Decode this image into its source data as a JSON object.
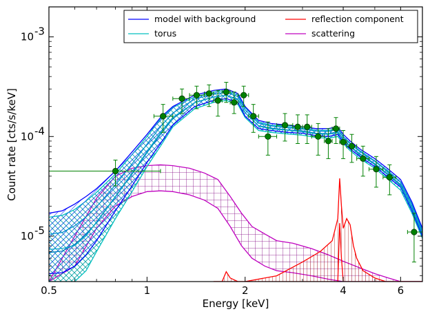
{
  "chart_data": {
    "type": "line",
    "xlabel": "Energy [keV]",
    "ylabel": "Count rate [cts/s/keV]",
    "xscale": "log",
    "yscale": "log",
    "xlim": [
      0.5,
      7.0
    ],
    "ylim": [
      3.5e-06,
      0.002
    ],
    "x_ticks": [
      {
        "value": 0.5,
        "label": "0.5"
      },
      {
        "value": 1,
        "label": "1"
      },
      {
        "value": 2,
        "label": "2"
      },
      {
        "value": 4,
        "label": "4"
      },
      {
        "value": 6,
        "label": "6"
      }
    ],
    "y_ticks": [
      {
        "value": 1e-05,
        "base": "10",
        "exp": "-5"
      },
      {
        "value": 0.0001,
        "base": "10",
        "exp": "-4"
      },
      {
        "value": 0.001,
        "base": "10",
        "exp": "-3"
      }
    ],
    "grid": false,
    "legend": {
      "placement": "top-right",
      "entries": [
        {
          "label": "model with background",
          "color": "#0000ff"
        },
        {
          "label": "reflection component",
          "color": "#ff0000"
        },
        {
          "label": "torus",
          "color": "#00bfbf"
        },
        {
          "label": "scattering",
          "color": "#bf00bf"
        }
      ]
    },
    "series": [
      {
        "name": "model with background",
        "color": "#0000ff",
        "x": [
          0.5,
          0.55,
          0.6,
          0.65,
          0.7,
          0.8,
          0.9,
          1.0,
          1.1,
          1.2,
          1.4,
          1.6,
          1.75,
          1.9,
          2.0,
          2.2,
          2.4,
          2.7,
          3.0,
          3.3,
          3.6,
          3.85,
          4.0,
          4.2,
          4.5,
          5.0,
          5.5,
          6.0,
          6.5,
          7.0
        ],
        "upper": [
          1.7e-05,
          1.8e-05,
          2.1e-05,
          2.5e-05,
          3e-05,
          4.5e-05,
          7e-05,
          0.000105,
          0.000155,
          0.0002,
          0.00026,
          0.00029,
          0.0003,
          0.00027,
          0.0002,
          0.000145,
          0.000135,
          0.00013,
          0.000125,
          0.00012,
          0.00012,
          0.000125,
          0.000105,
          9e-05,
          7.5e-05,
          6e-05,
          4.7e-05,
          3.7e-05,
          2.2e-05,
          1.2e-05
        ],
        "lower": [
          4.2e-06,
          4.3e-06,
          5e-06,
          6.5e-06,
          9e-06,
          1.8e-05,
          3.2e-05,
          5.5e-05,
          8.5e-05,
          0.00013,
          0.0002,
          0.00023,
          0.00024,
          0.00022,
          0.00016,
          0.00012,
          0.000115,
          0.00011,
          0.000108,
          0.000102,
          0.0001,
          0.000105,
          8.8e-05,
          7.5e-05,
          6.3e-05,
          5e-05,
          3.9e-05,
          3.1e-05,
          1.8e-05,
          1e-05
        ]
      },
      {
        "name": "torus",
        "color": "#00bfbf",
        "x": [
          0.5,
          0.55,
          0.6,
          0.65,
          0.7,
          0.8,
          0.9,
          1.0,
          1.1,
          1.2,
          1.4,
          1.6,
          1.75,
          1.9,
          2.0,
          2.2,
          2.4,
          2.7,
          3.0,
          3.3,
          3.6,
          3.85,
          4.0,
          4.2,
          4.5,
          5.0,
          5.5,
          6.0,
          6.5,
          7.0
        ],
        "upper": [
          1.55e-05,
          1.62e-05,
          1.85e-05,
          2.25e-05,
          2.75e-05,
          4.2e-05,
          6.6e-05,
          0.0001,
          0.00015,
          0.000195,
          0.00025,
          0.00028,
          0.00029,
          0.00026,
          0.000195,
          0.00014,
          0.00013,
          0.000126,
          0.000121,
          0.000116,
          0.000115,
          0.00012,
          0.0001,
          8.6e-05,
          7.2e-05,
          5.7e-05,
          4.5e-05,
          3.5e-05,
          2.1e-05,
          1.15e-05
        ],
        "lower": [
          3.5e-06,
          3.5e-06,
          3.5e-06,
          4.5e-06,
          7e-06,
          1.5e-05,
          2.8e-05,
          5e-05,
          8e-05,
          0.000125,
          0.00019,
          0.00022,
          0.00023,
          0.00021,
          0.000155,
          0.000115,
          0.00011,
          0.000106,
          0.000103,
          9.8e-05,
          9.6e-05,
          0.0001,
          8.5e-05,
          7.2e-05,
          6e-05,
          4.8e-05,
          3.7e-05,
          2.9e-05,
          1.7e-05,
          9.5e-06
        ]
      },
      {
        "name": "scattering",
        "color": "#bf00bf",
        "x": [
          0.5,
          0.6,
          0.7,
          0.8,
          0.9,
          1.0,
          1.1,
          1.2,
          1.35,
          1.5,
          1.65,
          1.8,
          1.95,
          2.1,
          2.3,
          2.5,
          2.8,
          3.2,
          3.6,
          4.0,
          4.5,
          5.0,
          5.5,
          6.0,
          7.0
        ],
        "upper": [
          3.5e-06,
          1e-05,
          2.4e-05,
          4e-05,
          4.8e-05,
          5.1e-05,
          5.2e-05,
          5.1e-05,
          4.8e-05,
          4.3e-05,
          3.7e-05,
          2.5e-05,
          1.7e-05,
          1.25e-05,
          1.05e-05,
          9e-06,
          8.5e-06,
          7.5e-06,
          6.5e-06,
          5.6e-06,
          4.8e-06,
          4.2e-06,
          3.8e-06,
          3.5e-06,
          3.5e-06
        ],
        "lower": [
          3.5e-06,
          5e-06,
          1.2e-05,
          2e-05,
          2.5e-05,
          2.8e-05,
          2.85e-05,
          2.8e-05,
          2.6e-05,
          2.3e-05,
          1.9e-05,
          1.25e-05,
          8e-06,
          6e-06,
          5e-06,
          4.5e-06,
          4.3e-06,
          4e-06,
          3.7e-06,
          3.5e-06,
          3.5e-06,
          3.5e-06,
          3.5e-06,
          3.5e-06,
          3.5e-06
        ]
      },
      {
        "name": "reflection component",
        "color": "#ff0000",
        "x": [
          1.6,
          1.7,
          1.75,
          1.8,
          1.9,
          2.0,
          2.5,
          3.0,
          3.4,
          3.7,
          3.85,
          3.9,
          3.95,
          4.0,
          4.1,
          4.2,
          4.3,
          4.4,
          4.6,
          5.0,
          5.4,
          6.0,
          7.0
        ],
        "upper": [
          3.5e-06,
          3.5e-06,
          4.4e-06,
          3.8e-06,
          3.5e-06,
          3.5e-06,
          4e-06,
          5.5e-06,
          7e-06,
          9e-06,
          1.5e-05,
          3.8e-05,
          2e-05,
          1.2e-05,
          1.5e-05,
          1.3e-05,
          8e-06,
          6e-06,
          4.5e-06,
          3.8e-06,
          3.5e-06,
          3.5e-06,
          3.5e-06
        ],
        "lower": [
          3.5e-06,
          3.5e-06,
          3.5e-06,
          3.5e-06,
          3.5e-06,
          3.5e-06,
          3.5e-06,
          3.5e-06,
          3.5e-06,
          3.5e-06,
          3.5e-06,
          1.35e-05,
          6e-06,
          3.5e-06,
          3.5e-06,
          3.5e-06,
          3.5e-06,
          3.5e-06,
          3.5e-06,
          3.5e-06,
          3.5e-06,
          3.5e-06,
          3.5e-06
        ]
      }
    ],
    "data_points": {
      "color": "#008000",
      "points": [
        {
          "x": 0.8,
          "y": 4.5e-05,
          "xlo": 0.5,
          "xhi": 1.1,
          "ylo": 3.2e-05,
          "yhi": 5.8e-05
        },
        {
          "x": 1.12,
          "y": 0.00016,
          "xlo": 1.05,
          "xhi": 1.2,
          "ylo": 0.00011,
          "yhi": 0.00021
        },
        {
          "x": 1.28,
          "y": 0.00024,
          "xlo": 1.2,
          "xhi": 1.35,
          "ylo": 0.00017,
          "yhi": 0.0003
        },
        {
          "x": 1.42,
          "y": 0.00026,
          "xlo": 1.35,
          "xhi": 1.5,
          "ylo": 0.00019,
          "yhi": 0.00032
        },
        {
          "x": 1.55,
          "y": 0.00027,
          "xlo": 1.5,
          "xhi": 1.6,
          "ylo": 0.0002,
          "yhi": 0.00033
        },
        {
          "x": 1.65,
          "y": 0.00023,
          "xlo": 1.6,
          "xhi": 1.7,
          "ylo": 0.00016,
          "yhi": 0.00029
        },
        {
          "x": 1.75,
          "y": 0.00028,
          "xlo": 1.7,
          "xhi": 1.8,
          "ylo": 0.00022,
          "yhi": 0.00035
        },
        {
          "x": 1.85,
          "y": 0.00022,
          "xlo": 1.8,
          "xhi": 1.9,
          "ylo": 0.00017,
          "yhi": 0.00028
        },
        {
          "x": 1.98,
          "y": 0.00026,
          "xlo": 1.9,
          "xhi": 2.05,
          "ylo": 0.0002,
          "yhi": 0.00032
        },
        {
          "x": 2.12,
          "y": 0.00016,
          "xlo": 2.05,
          "xhi": 2.2,
          "ylo": 0.00011,
          "yhi": 0.00021
        },
        {
          "x": 2.35,
          "y": 0.0001,
          "xlo": 2.2,
          "xhi": 2.5,
          "ylo": 6.5e-05,
          "yhi": 0.00014
        },
        {
          "x": 2.65,
          "y": 0.00013,
          "xlo": 2.5,
          "xhi": 2.8,
          "ylo": 9e-05,
          "yhi": 0.00017
        },
        {
          "x": 2.9,
          "y": 0.000125,
          "xlo": 2.8,
          "xhi": 3.0,
          "ylo": 8.5e-05,
          "yhi": 0.000165
        },
        {
          "x": 3.1,
          "y": 0.000125,
          "xlo": 3.0,
          "xhi": 3.2,
          "ylo": 8.5e-05,
          "yhi": 0.000165
        },
        {
          "x": 3.35,
          "y": 0.0001,
          "xlo": 3.2,
          "xhi": 3.5,
          "ylo": 6.5e-05,
          "yhi": 0.000135
        },
        {
          "x": 3.6,
          "y": 9e-05,
          "xlo": 3.5,
          "xhi": 3.7,
          "ylo": 6e-05,
          "yhi": 0.00012
        },
        {
          "x": 3.8,
          "y": 0.00012,
          "xlo": 3.7,
          "xhi": 3.9,
          "ylo": 8.5e-05,
          "yhi": 0.000155
        },
        {
          "x": 4.0,
          "y": 8.8e-05,
          "xlo": 3.9,
          "xhi": 4.1,
          "ylo": 6e-05,
          "yhi": 0.000115
        },
        {
          "x": 4.25,
          "y": 8e-05,
          "xlo": 4.1,
          "xhi": 4.4,
          "ylo": 5.5e-05,
          "yhi": 0.000105
        },
        {
          "x": 4.6,
          "y": 6e-05,
          "xlo": 4.4,
          "xhi": 4.8,
          "ylo": 4e-05,
          "yhi": 8e-05
        },
        {
          "x": 5.05,
          "y": 4.7e-05,
          "xlo": 4.8,
          "xhi": 5.3,
          "ylo": 3.1e-05,
          "yhi": 6.3e-05
        },
        {
          "x": 5.55,
          "y": 3.9e-05,
          "xlo": 5.3,
          "xhi": 5.8,
          "ylo": 2.6e-05,
          "yhi": 5.2e-05
        },
        {
          "x": 6.6,
          "y": 1.1e-05,
          "xlo": 6.3,
          "xhi": 7.0,
          "ylo": 5.5e-06,
          "yhi": 1.7e-05
        }
      ]
    }
  }
}
